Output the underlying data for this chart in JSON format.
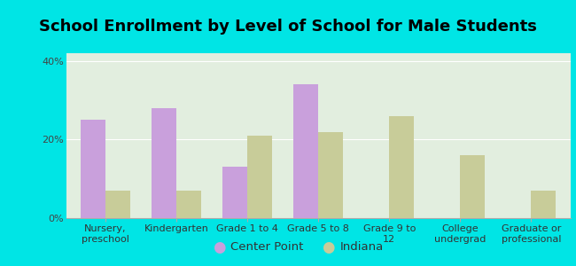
{
  "title": "School Enrollment by Level of School for Male Students",
  "categories": [
    "Nursery,\npreschool",
    "Kindergarten",
    "Grade 1 to 4",
    "Grade 5 to 8",
    "Grade 9 to\n12",
    "College\nundergrad",
    "Graduate or\nprofessional"
  ],
  "center_point": [
    25,
    28,
    13,
    34,
    0,
    0,
    0
  ],
  "indiana": [
    7,
    7,
    21,
    22,
    26,
    16,
    7
  ],
  "center_point_color": "#c9a0dc",
  "indiana_color": "#c8cc99",
  "background_color": "#00e5e5",
  "plot_bg_color": "#e8f5e9",
  "ylabel_ticks": [
    "0%",
    "20%",
    "40%"
  ],
  "yticks": [
    0,
    20,
    40
  ],
  "ylim": [
    0,
    42
  ],
  "bar_width": 0.35,
  "title_fontsize": 13,
  "tick_fontsize": 8,
  "legend_fontsize": 9.5
}
